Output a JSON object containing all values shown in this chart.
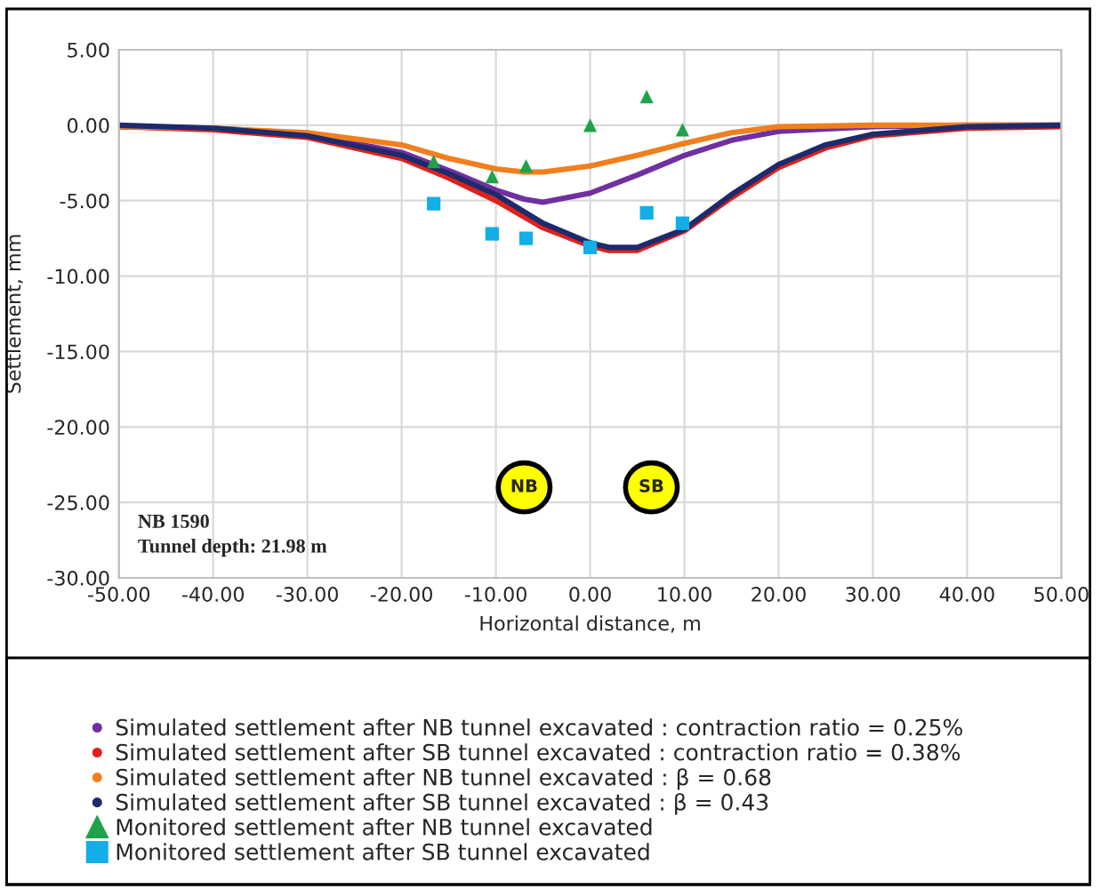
{
  "chart_data": {
    "type": "line",
    "xlabel": "Horizontal distance, m",
    "ylabel": "Settlement, mm",
    "xlim": [
      -50,
      50
    ],
    "ylim": [
      -30,
      5
    ],
    "xticks": [
      {
        "value": -50,
        "label": "-50.00"
      },
      {
        "value": -40,
        "label": "-40.00"
      },
      {
        "value": -30,
        "label": "-30.00"
      },
      {
        "value": -20,
        "label": "-20.00"
      },
      {
        "value": -10,
        "label": "-10.00"
      },
      {
        "value": 0,
        "label": "0.00"
      },
      {
        "value": 10,
        "label": "10.00"
      },
      {
        "value": 20,
        "label": "20.00"
      },
      {
        "value": 30,
        "label": "30.00"
      },
      {
        "value": 40,
        "label": "40.00"
      },
      {
        "value": 50,
        "label": "50.00"
      }
    ],
    "yticks": [
      {
        "value": -30,
        "label": "-30.00"
      },
      {
        "value": -25,
        "label": "-25.00"
      },
      {
        "value": -20,
        "label": "-20.00"
      },
      {
        "value": -15,
        "label": "-15.00"
      },
      {
        "value": -10,
        "label": "-10.00"
      },
      {
        "value": -5,
        "label": "-5.00"
      },
      {
        "value": 0,
        "label": "0.00"
      },
      {
        "value": 5,
        "label": "5.00"
      }
    ],
    "grid": true,
    "legend": "bottom",
    "series": [
      {
        "name": "Simulated settlement after NB tunnel excavated : contraction ratio = 0.25%",
        "color": "#7030a0",
        "x": [
          -50,
          -40,
          -30,
          -20,
          -15,
          -10,
          -7,
          -5,
          0,
          5,
          10,
          15,
          20,
          30,
          40,
          50
        ],
        "values": [
          -0.1,
          -0.2,
          -0.6,
          -1.8,
          -3.0,
          -4.3,
          -4.9,
          -5.1,
          -4.5,
          -3.3,
          -2.0,
          -1.0,
          -0.4,
          -0.1,
          0,
          0
        ]
      },
      {
        "name": "Simulated settlement after SB tunnel excavated : contraction ratio = 0.38%",
        "color": "#e0201b",
        "x": [
          -50,
          -40,
          -30,
          -20,
          -15,
          -10,
          -5,
          0,
          2,
          5,
          10,
          15,
          20,
          25,
          30,
          40,
          50
        ],
        "values": [
          -0.1,
          -0.3,
          -0.8,
          -2.2,
          -3.5,
          -5.0,
          -6.8,
          -8.0,
          -8.3,
          -8.3,
          -7.0,
          -4.8,
          -2.8,
          -1.5,
          -0.7,
          -0.2,
          -0.1
        ]
      },
      {
        "name": "Simulated settlement after NB tunnel excavated : β = 0.68",
        "color": "#f07f1f",
        "x": [
          -50,
          -40,
          -30,
          -20,
          -15,
          -10,
          -7,
          -5,
          0,
          5,
          10,
          15,
          20,
          30,
          40,
          50
        ],
        "values": [
          -0.1,
          -0.2,
          -0.5,
          -1.3,
          -2.2,
          -2.9,
          -3.1,
          -3.1,
          -2.7,
          -2.0,
          -1.2,
          -0.5,
          -0.1,
          0,
          0,
          0
        ]
      },
      {
        "name": "Simulated settlement after SB tunnel excavated : β = 0.43",
        "color": "#1f2a6b",
        "x": [
          -50,
          -40,
          -30,
          -20,
          -15,
          -10,
          -5,
          0,
          2,
          5,
          10,
          15,
          20,
          25,
          30,
          40,
          50
        ],
        "values": [
          0,
          -0.2,
          -0.7,
          -2.0,
          -3.2,
          -4.6,
          -6.5,
          -7.8,
          -8.1,
          -8.1,
          -6.9,
          -4.6,
          -2.6,
          -1.3,
          -0.6,
          -0.1,
          0
        ]
      },
      {
        "name": "Monitored settlement after NB tunnel excavated",
        "color": "#1fa24a",
        "type": "scatter",
        "marker": "triangle",
        "x": [
          -16.6,
          -10.4,
          -6.8,
          0,
          6.0,
          9.8
        ],
        "values": [
          -2.4,
          -3.4,
          -2.7,
          0,
          1.9,
          -0.3
        ]
      },
      {
        "name": "Monitored settlement after SB tunnel excavated",
        "color": "#12aee8",
        "type": "scatter",
        "marker": "square",
        "x": [
          -16.6,
          -10.4,
          -6.8,
          0,
          6.0,
          9.8
        ],
        "values": [
          -5.2,
          -7.2,
          -7.5,
          -8.1,
          -5.8,
          -6.5
        ]
      }
    ],
    "annotations": [
      {
        "text": "NB",
        "x": -7,
        "y": -24
      },
      {
        "text": "SB",
        "x": 6.5,
        "y": -24
      },
      "NB 1590\nTunnel depth: 21.98 m"
    ]
  }
}
